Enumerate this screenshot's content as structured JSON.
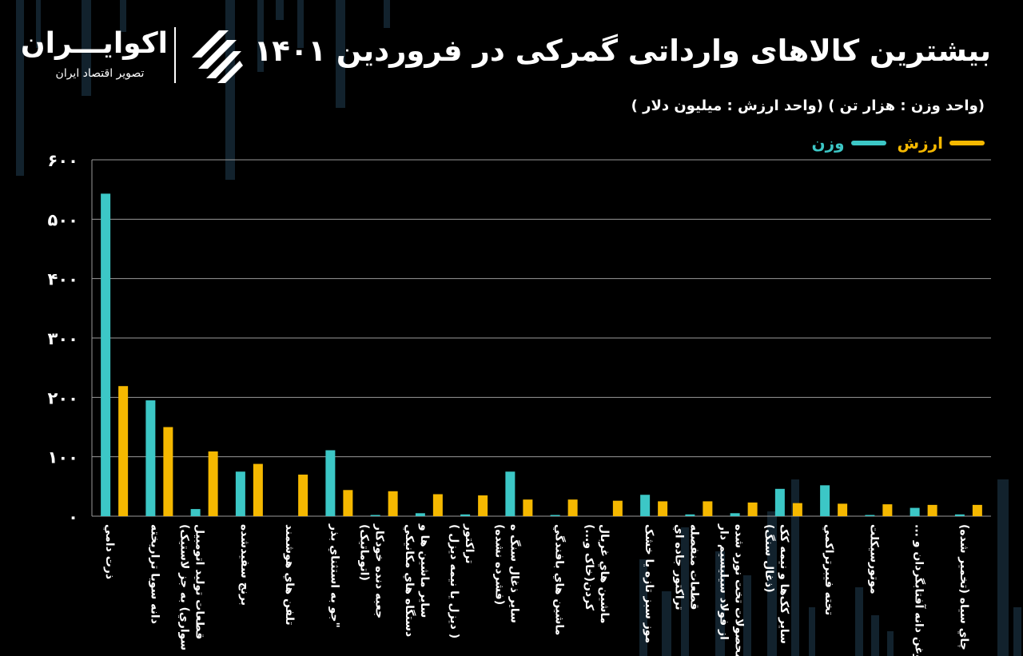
{
  "header": {
    "title": "بیشترین کالاهای وارداتی گمرکی در فروردین ۱۴۰۱",
    "subtitle": "(واحد وزن : هزار تن )   (واحد ارزش : میلیون دلار )"
  },
  "brand": {
    "name": "اکوایـــران",
    "tagline": "تصویر اقتصاد ایران"
  },
  "colors": {
    "weight": "#3cc7c6",
    "value": "#f5b800",
    "grid": "#9a9a9a",
    "background": "#000000"
  },
  "legend": [
    {
      "label": "ارزش",
      "color": "#f5b800"
    },
    {
      "label": "وزن",
      "color": "#3cc7c6"
    }
  ],
  "chart_data": {
    "type": "bar",
    "title": "بیشترین کالاهای وارداتی گمرکی در فروردین ۱۴۰۱",
    "ylim": [
      0,
      600
    ],
    "yticks": [
      0,
      100,
      200,
      300,
      400,
      500,
      600
    ],
    "ytick_labels": [
      "۰",
      "۱۰۰",
      "۲۰۰",
      "۳۰۰",
      "۴۰۰",
      "۵۰۰",
      "۶۰۰"
    ],
    "grid": true,
    "legend_position": "top-right",
    "categories": [
      [
        "ذرت دامي"
      ],
      [
        "دانه سويا تراريخته"
      ],
      [
        "قطعات توليد اتومبيل",
        "سواري) به جز لاستيک)"
      ],
      [
        "برنج سفيدشده"
      ],
      [
        "تلفن هاي هوشمند"
      ],
      [
        "\"جو به استثناي بذر"
      ],
      [
        "جعبه دنده خودکار",
        "(اتوماتيک)"
      ],
      [
        "ساير ماشين ها و",
        "دستگاه هاي مکانيکي"
      ],
      [
        "تراکتور",
        "( ديزل يا نيمه ديزل )"
      ],
      [
        "ساير ذغال سنگ ه",
        "(فشرده نشده)"
      ],
      [
        "ماشين هاي بافندگي"
      ],
      [
        "ماشين هاي غربال",
        "کردن(خاک و...)"
      ],
      [
        "موز سبز تازه يا خشک"
      ],
      [
        "قطعات منفصله",
        "تراکتور جاده اي"
      ],
      [
        "محصولات تخت نورد شده",
        "از فولاد سيليسيم دار"
      ],
      [
        "ساير کک‌ها و نيمه کک",
        "(ذغال سنگ)"
      ],
      [
        "تخته فيبرتراکمي"
      ],
      [
        "موتورسيکلت"
      ],
      [
        "روغن دانه آفتابگردان و ..."
      ],
      [
        "چاي سياه (تخمير شده)"
      ]
    ],
    "series": [
      {
        "name": "وزن",
        "color": "#3cc7c6",
        "values": [
          543,
          195,
          12,
          75,
          0,
          111,
          2,
          5,
          3,
          75,
          2,
          0,
          36,
          3,
          5,
          46,
          52,
          2,
          14,
          3
        ]
      },
      {
        "name": "ارزش",
        "color": "#f5b800",
        "values": [
          219,
          150,
          109,
          88,
          70,
          44,
          42,
          37,
          35,
          28,
          28,
          26,
          25,
          25,
          23,
          22,
          21,
          20,
          19,
          19
        ]
      }
    ]
  }
}
